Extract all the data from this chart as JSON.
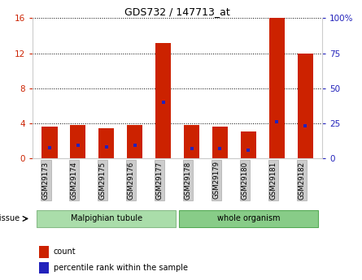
{
  "title": "GDS732 / 147713_at",
  "samples": [
    "GSM29173",
    "GSM29174",
    "GSM29175",
    "GSM29176",
    "GSM29177",
    "GSM29178",
    "GSM29179",
    "GSM29180",
    "GSM29181",
    "GSM29182"
  ],
  "count_values": [
    3.6,
    3.8,
    3.4,
    3.8,
    13.2,
    3.8,
    3.6,
    3.1,
    16.0,
    12.0
  ],
  "percentile_values": [
    1.2,
    1.5,
    1.3,
    1.5,
    6.4,
    1.1,
    1.1,
    0.9,
    4.2,
    3.7
  ],
  "left_ylim": [
    0,
    16
  ],
  "left_yticks": [
    0,
    4,
    8,
    12,
    16
  ],
  "right_ylim": [
    0,
    100
  ],
  "right_yticks": [
    0,
    25,
    50,
    75,
    100
  ],
  "bar_color": "#cc2200",
  "dot_color": "#2222bb",
  "bar_width": 0.55,
  "tissue_group1_label": "Malpighian tubule",
  "tissue_group1_color": "#aaddaa",
  "tissue_group1_edge": "#88bb88",
  "tissue_group2_label": "whole organism",
  "tissue_group2_color": "#88cc88",
  "tissue_group2_edge": "#55aa55",
  "tissue_label": "tissue",
  "legend_count": "count",
  "legend_pct": "percentile rank within the sample",
  "tick_label_bg": "#cccccc",
  "tick_label_edge": "#aaaaaa",
  "ylabel_left_color": "#cc2200",
  "ylabel_right_color": "#2222bb",
  "spine_color": "#cccccc",
  "grid_color": "#000000",
  "bg_color": "#ffffff"
}
